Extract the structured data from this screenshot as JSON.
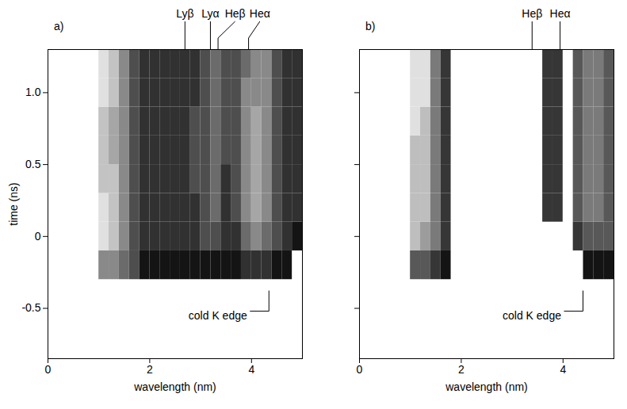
{
  "chart_data": [
    {
      "type": "heatmap",
      "panel": "a)",
      "xlabel": "wavelength (nm)",
      "ylabel": "time (ns)",
      "xlim": [
        0,
        5
      ],
      "ylim": [
        -0.85,
        1.3
      ],
      "xticks": [
        0,
        2,
        4
      ],
      "yticks": [
        -0.5,
        0,
        0.5,
        {
          "value": 1,
          "label": "1.0"
        }
      ],
      "tick_labels": true,
      "line_labels": [
        {
          "text": "Lyβ",
          "x": 2.7
        },
        {
          "text": "Lyα",
          "x": 3.2
        },
        {
          "text": "Heβ",
          "x": 3.35
        },
        {
          "text": "Heα",
          "x": 3.95
        }
      ],
      "annotations": [
        {
          "text": "cold K edge",
          "x": 4.35,
          "y": -0.55
        }
      ],
      "cells": {
        "x": [
          1.1,
          1.3,
          1.5,
          1.7,
          1.9,
          2.1,
          2.3,
          2.5,
          2.7,
          2.9,
          3.1,
          3.3,
          3.5,
          3.7,
          3.9,
          4.1,
          4.3,
          4.5,
          4.7,
          4.9
        ],
        "y": [
          -0.2,
          0.0,
          0.2,
          0.4,
          0.6,
          0.8,
          1.0,
          1.2
        ],
        "values": [
          [
            5,
            5,
            4,
            3,
            1,
            1,
            1,
            1,
            1,
            1,
            1,
            1,
            1,
            1,
            2,
            2,
            2,
            1,
            1,
            0
          ],
          [
            8,
            7,
            5,
            3,
            2,
            2,
            2,
            2,
            2,
            2,
            3,
            3,
            2,
            2,
            4,
            5,
            4,
            3,
            2,
            1
          ],
          [
            8,
            7,
            5,
            3,
            2,
            2,
            2,
            2,
            2,
            2,
            3,
            4,
            2,
            3,
            5,
            6,
            5,
            3,
            2,
            2
          ],
          [
            7,
            7,
            5,
            3,
            2,
            2,
            2,
            2,
            2,
            3,
            3,
            4,
            2,
            3,
            5,
            6,
            5,
            3,
            2,
            2
          ],
          [
            7,
            6,
            5,
            3,
            2,
            2,
            2,
            2,
            2,
            3,
            3,
            4,
            3,
            3,
            5,
            6,
            5,
            3,
            2,
            2
          ],
          [
            7,
            6,
            5,
            3,
            2,
            2,
            2,
            2,
            2,
            3,
            3,
            4,
            3,
            3,
            5,
            6,
            5,
            3,
            2,
            2
          ],
          [
            8,
            7,
            5,
            3,
            2,
            2,
            2,
            2,
            2,
            2,
            3,
            4,
            3,
            3,
            5,
            5,
            5,
            3,
            2,
            2
          ],
          [
            8,
            7,
            5,
            3,
            2,
            2,
            2,
            2,
            2,
            2,
            3,
            4,
            3,
            3,
            4,
            5,
            5,
            3,
            2,
            2
          ]
        ]
      }
    },
    {
      "type": "heatmap",
      "panel": "b)",
      "xlabel": "wavelength (nm)",
      "xlim": [
        0,
        5
      ],
      "ylim": [
        -0.85,
        1.3
      ],
      "xticks": [
        0,
        2,
        4
      ],
      "yticks": [
        -0.5,
        0,
        0.5,
        1
      ],
      "tick_labels": "x",
      "line_labels": [
        {
          "text": "Heβ",
          "x": 3.4
        },
        {
          "text": "Heα",
          "x": 3.95
        }
      ],
      "annotations": [
        {
          "text": "cold K edge",
          "x": 4.4,
          "y": -0.55
        }
      ],
      "cells": {
        "x": [
          1.1,
          1.3,
          1.5,
          1.7,
          1.9,
          2.1,
          2.3,
          2.5,
          2.7,
          2.9,
          3.1,
          3.3,
          3.5,
          3.7,
          3.9,
          4.1,
          4.3,
          4.5,
          4.7,
          4.9
        ],
        "y": [
          -0.2,
          0.0,
          0.2,
          0.4,
          0.6,
          0.8,
          1.0,
          1.2
        ],
        "values": [
          [
            3,
            3,
            2,
            1,
            0,
            0,
            0,
            0,
            0,
            0,
            0,
            0,
            0,
            0,
            0,
            0,
            0,
            1,
            1,
            1
          ],
          [
            6,
            5,
            4,
            2,
            0,
            0,
            0,
            0,
            0,
            0,
            0,
            0,
            0,
            0,
            0,
            0,
            2,
            3,
            3,
            3
          ],
          [
            6,
            6,
            4,
            2,
            0,
            0,
            0,
            0,
            0,
            0,
            0,
            0,
            0,
            2,
            2,
            0,
            3,
            4,
            4,
            3
          ],
          [
            6,
            6,
            4,
            2,
            0,
            0,
            0,
            0,
            0,
            0,
            0,
            0,
            0,
            2,
            2,
            0,
            3,
            4,
            4,
            3
          ],
          [
            6,
            6,
            4,
            2,
            0,
            0,
            0,
            0,
            0,
            0,
            0,
            0,
            0,
            2,
            2,
            0,
            3,
            4,
            4,
            3
          ],
          [
            7,
            6,
            4,
            2,
            0,
            0,
            0,
            0,
            0,
            0,
            0,
            0,
            0,
            2,
            2,
            0,
            3,
            4,
            4,
            3
          ],
          [
            7,
            7,
            4,
            2,
            0,
            0,
            0,
            0,
            0,
            0,
            0,
            0,
            0,
            2,
            2,
            0,
            3,
            4,
            4,
            3
          ],
          [
            7,
            7,
            4,
            2,
            0,
            0,
            0,
            0,
            0,
            0,
            0,
            0,
            0,
            2,
            2,
            0,
            3,
            4,
            4,
            3
          ]
        ]
      }
    }
  ]
}
